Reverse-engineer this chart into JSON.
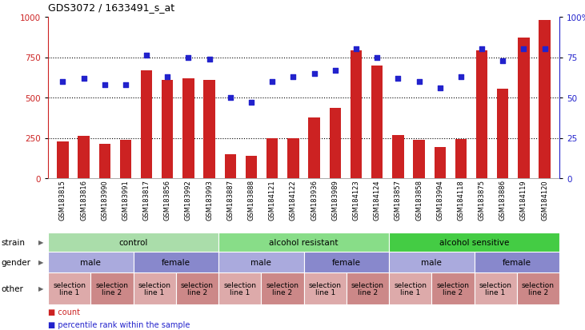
{
  "title": "GDS3072 / 1633491_s_at",
  "samples": [
    "GSM183815",
    "GSM183816",
    "GSM183990",
    "GSM183991",
    "GSM183817",
    "GSM183856",
    "GSM183992",
    "GSM183993",
    "GSM183887",
    "GSM183888",
    "GSM184121",
    "GSM184122",
    "GSM183936",
    "GSM183989",
    "GSM184123",
    "GSM184124",
    "GSM183857",
    "GSM183858",
    "GSM183994",
    "GSM184118",
    "GSM183875",
    "GSM183886",
    "GSM184119",
    "GSM184120"
  ],
  "bar_values": [
    230,
    260,
    215,
    240,
    670,
    610,
    620,
    610,
    150,
    140,
    250,
    250,
    375,
    435,
    790,
    700,
    265,
    240,
    195,
    245,
    790,
    555,
    870,
    980
  ],
  "dot_values": [
    60,
    62,
    58,
    58,
    76,
    63,
    75,
    74,
    50,
    47,
    60,
    63,
    65,
    67,
    80,
    75,
    62,
    60,
    56,
    63,
    80,
    73,
    80,
    80
  ],
  "bar_color": "#cc2222",
  "dot_color": "#2222cc",
  "ylim_left": [
    0,
    1000
  ],
  "ylim_right": [
    0,
    100
  ],
  "yticks_left": [
    0,
    250,
    500,
    750,
    1000
  ],
  "yticks_right": [
    0,
    25,
    50,
    75,
    100
  ],
  "strain_groups": [
    {
      "label": "control",
      "start": 0,
      "end": 8,
      "color": "#aaddaa"
    },
    {
      "label": "alcohol resistant",
      "start": 8,
      "end": 16,
      "color": "#88dd88"
    },
    {
      "label": "alcohol sensitive",
      "start": 16,
      "end": 24,
      "color": "#44cc44"
    }
  ],
  "gender_groups": [
    {
      "label": "male",
      "start": 0,
      "end": 4,
      "color": "#aaaadd"
    },
    {
      "label": "female",
      "start": 4,
      "end": 8,
      "color": "#8888cc"
    },
    {
      "label": "male",
      "start": 8,
      "end": 12,
      "color": "#aaaadd"
    },
    {
      "label": "female",
      "start": 12,
      "end": 16,
      "color": "#8888cc"
    },
    {
      "label": "male",
      "start": 16,
      "end": 20,
      "color": "#aaaadd"
    },
    {
      "label": "female",
      "start": 20,
      "end": 24,
      "color": "#8888cc"
    }
  ],
  "other_groups": [
    {
      "label": "selection\nline 1",
      "start": 0,
      "end": 2,
      "color": "#ddaaaa"
    },
    {
      "label": "selection\nline 2",
      "start": 2,
      "end": 4,
      "color": "#cc8888"
    },
    {
      "label": "selection\nline 1",
      "start": 4,
      "end": 6,
      "color": "#ddaaaa"
    },
    {
      "label": "selection\nline 2",
      "start": 6,
      "end": 8,
      "color": "#cc8888"
    },
    {
      "label": "selection\nline 1",
      "start": 8,
      "end": 10,
      "color": "#ddaaaa"
    },
    {
      "label": "selection\nline 2",
      "start": 10,
      "end": 12,
      "color": "#cc8888"
    },
    {
      "label": "selection\nline 1",
      "start": 12,
      "end": 14,
      "color": "#ddaaaa"
    },
    {
      "label": "selection\nline 2",
      "start": 14,
      "end": 16,
      "color": "#cc8888"
    },
    {
      "label": "selection\nline 1",
      "start": 16,
      "end": 18,
      "color": "#ddaaaa"
    },
    {
      "label": "selection\nline 2",
      "start": 18,
      "end": 20,
      "color": "#cc8888"
    },
    {
      "label": "selection\nline 1",
      "start": 20,
      "end": 22,
      "color": "#ddaaaa"
    },
    {
      "label": "selection\nline 2",
      "start": 22,
      "end": 24,
      "color": "#cc8888"
    }
  ],
  "legend_count_color": "#cc2222",
  "legend_dot_color": "#2222cc",
  "bg_color": "#ffffff",
  "fig_width": 7.31,
  "fig_height": 4.14,
  "fig_dpi": 100
}
